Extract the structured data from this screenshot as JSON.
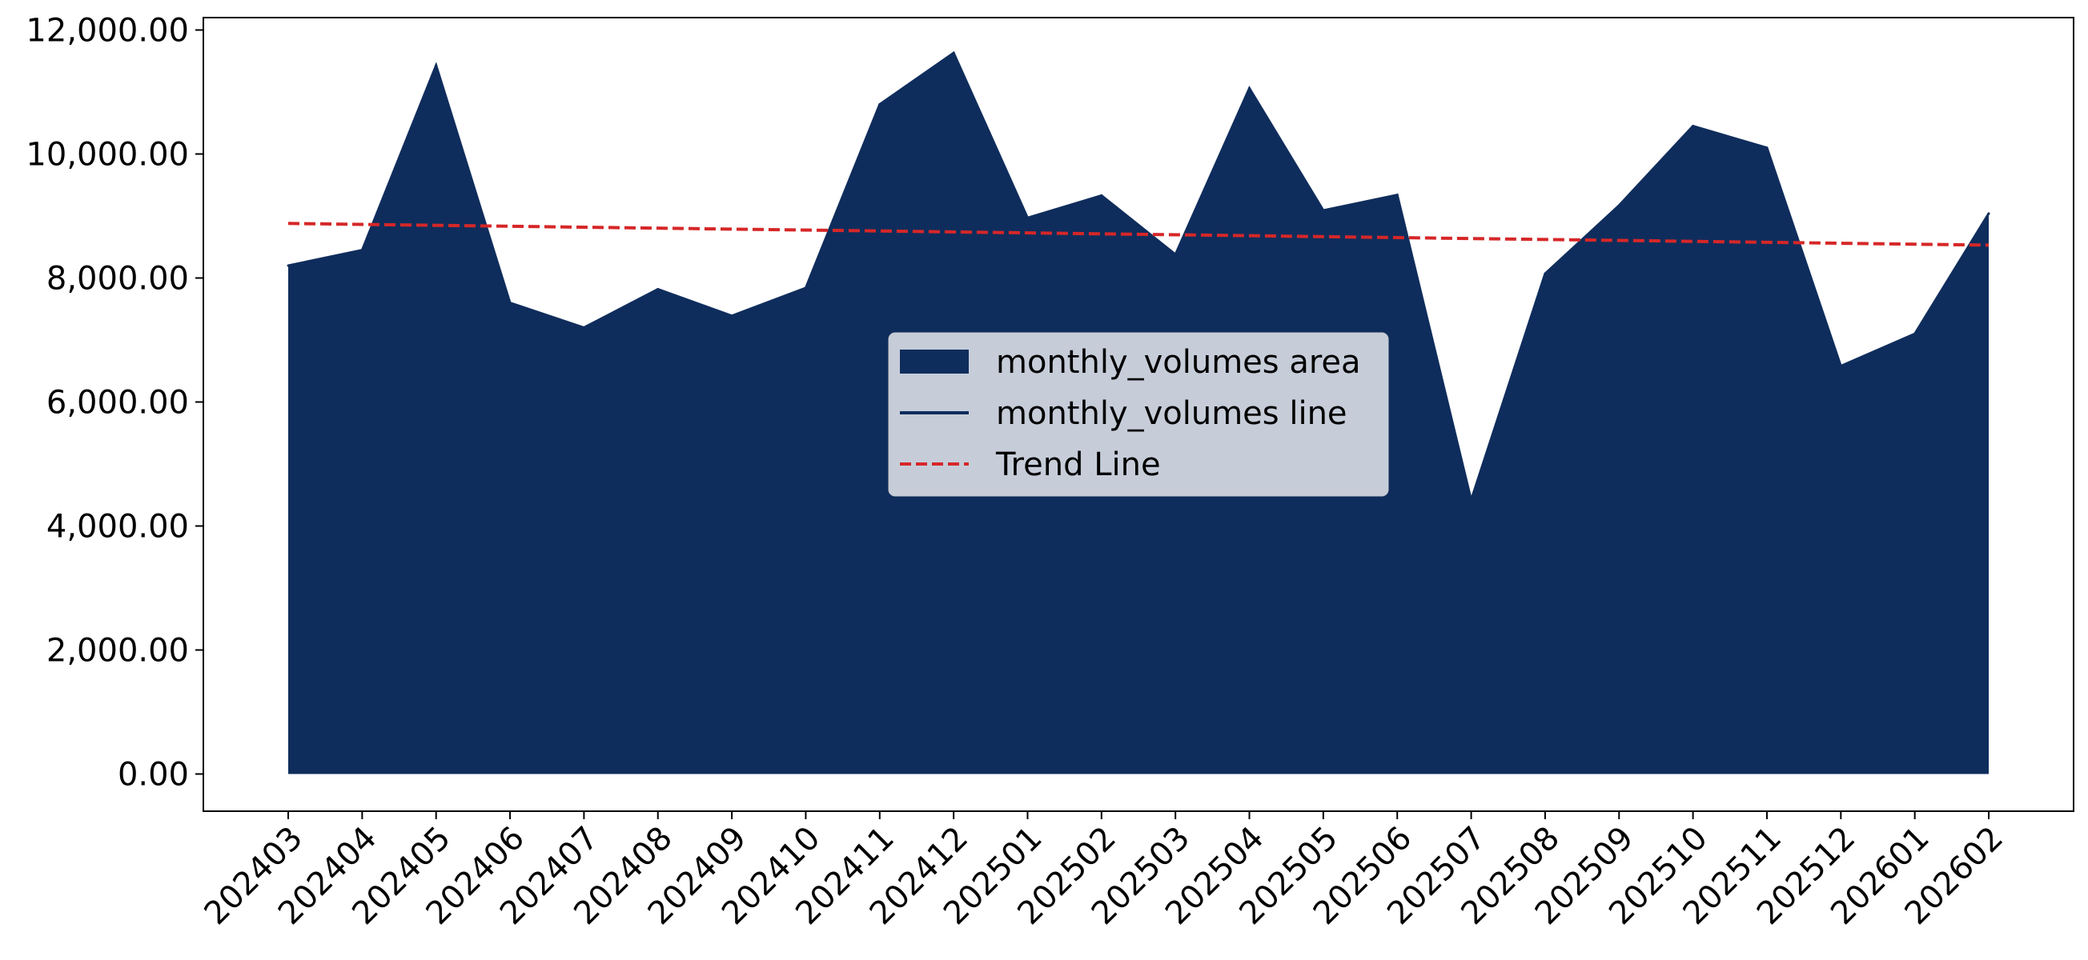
{
  "chart_data": {
    "type": "area",
    "categories": [
      "202403",
      "202404",
      "202405",
      "202406",
      "202407",
      "202408",
      "202409",
      "202410",
      "202411",
      "202412",
      "202501",
      "202502",
      "202503",
      "202504",
      "202505",
      "202506",
      "202507",
      "202508",
      "202509",
      "202510",
      "202511",
      "202512",
      "202601",
      "202602"
    ],
    "series": [
      {
        "name": "monthly_volumes area",
        "kind": "area",
        "color": "#0f2d5c",
        "values": [
          8200,
          8450,
          11430,
          7600,
          7200,
          7820,
          7390,
          7840,
          10800,
          11630,
          8970,
          9330,
          8380,
          11060,
          9090,
          9340,
          4420,
          8070,
          9170,
          10450,
          10100,
          6580,
          7100,
          9040
        ]
      },
      {
        "name": "monthly_volumes line",
        "kind": "line",
        "color": "#0f2d5c",
        "values": [
          8200,
          8450,
          11430,
          7600,
          7200,
          7820,
          7390,
          7840,
          10800,
          11630,
          8970,
          9330,
          8380,
          11060,
          9090,
          9340,
          4420,
          8070,
          9170,
          10450,
          10100,
          6580,
          7100,
          9040
        ]
      },
      {
        "name": "Trend Line",
        "kind": "trend",
        "color": "#d62728",
        "start": 8880,
        "end": 8530
      }
    ],
    "yticks": [
      "0.00",
      "2,000.00",
      "4,000.00",
      "6,000.00",
      "8,000.00",
      "10,000.00",
      "12,000.00"
    ],
    "ytick_values": [
      0,
      2000,
      4000,
      6000,
      8000,
      10000,
      12000
    ],
    "ylim": [
      -600,
      12200
    ],
    "title": "",
    "xlabel": "",
    "ylabel": "",
    "grid": false,
    "legend_position": "center"
  }
}
